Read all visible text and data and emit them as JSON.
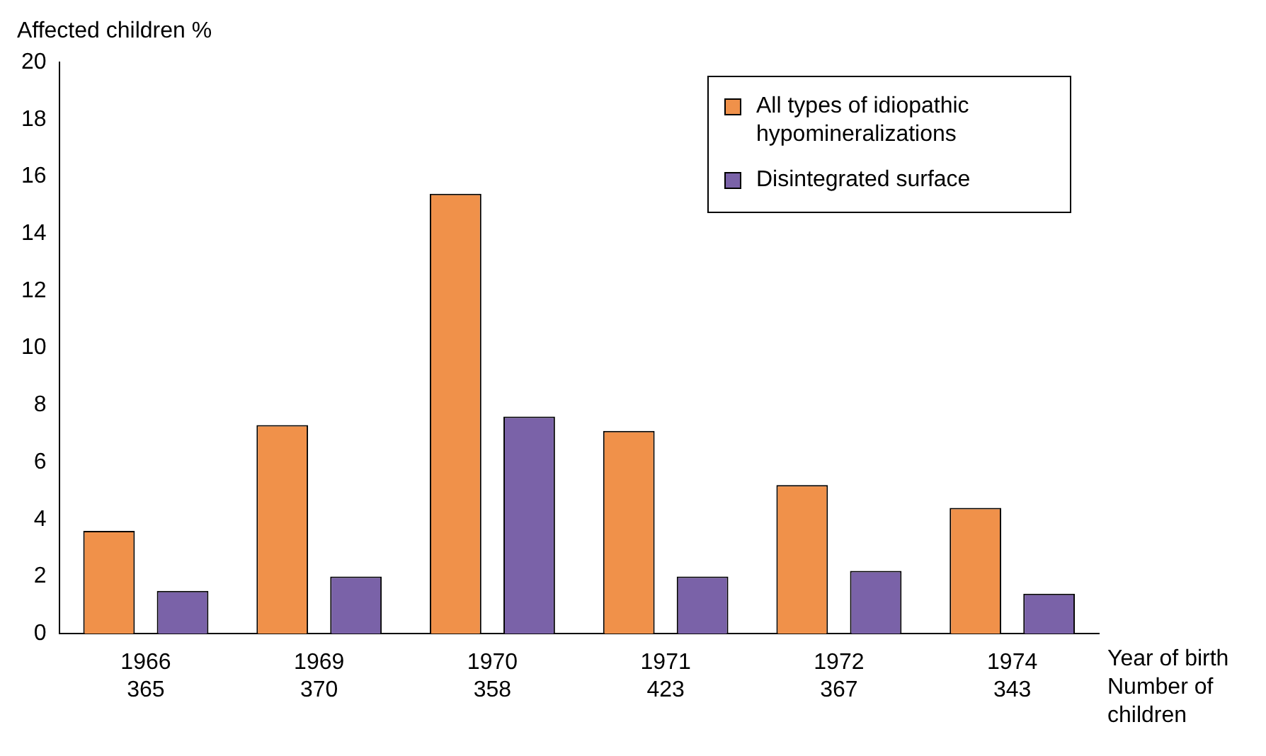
{
  "chart_data": {
    "type": "bar",
    "ylabel": "Affected children %",
    "xlabel": "Year of birth\nNumber of\nchildren",
    "categories": [
      "1966\n365",
      "1969\n370",
      "1970\n358",
      "1971\n423",
      "1972\n367",
      "1974\n343"
    ],
    "series": [
      {
        "name": "All types of idiopathic hypomineralizations",
        "color": "#f0914a",
        "values": [
          3.6,
          7.3,
          15.4,
          7.1,
          5.2,
          4.4
        ]
      },
      {
        "name": "Disintegrated surface",
        "color": "#7a62a8",
        "values": [
          1.5,
          2.0,
          7.6,
          2.0,
          2.2,
          1.4
        ]
      }
    ],
    "ylim": [
      0,
      20
    ],
    "yticks": [
      0,
      2,
      4,
      6,
      8,
      10,
      12,
      14,
      16,
      18,
      20
    ],
    "grid": false,
    "legend": "top right"
  }
}
